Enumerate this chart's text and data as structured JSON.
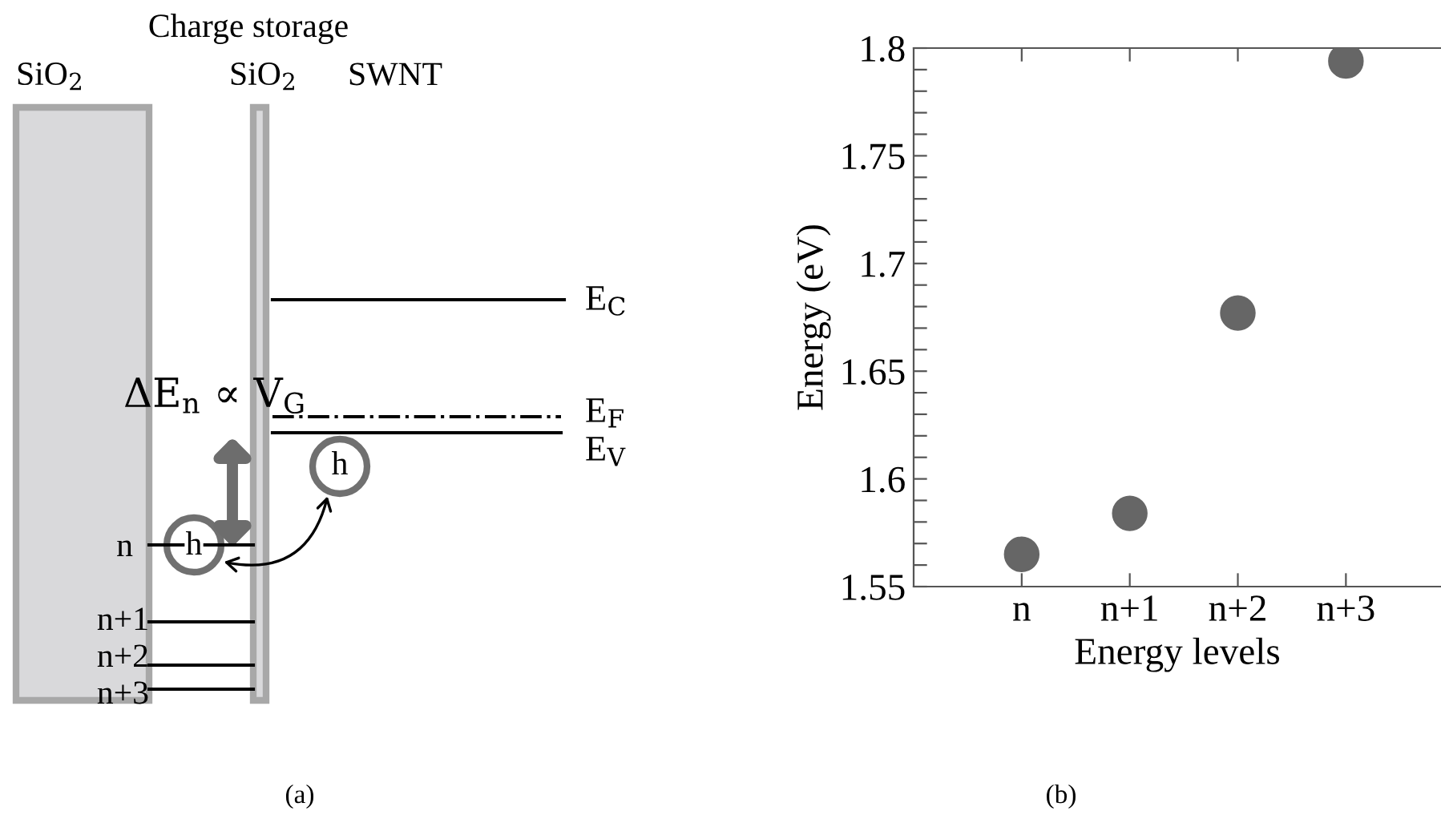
{
  "chart_data": [
    {
      "type": "other",
      "annotations": [
        "Charge storage",
        "SiO$_{2}$",
        "SiO$_{2}$",
        "SWNT",
        "E$_{C}$",
        "E$_{F}$",
        "E$_{V}$",
        "ΔE$_{n}$ ∝ V$_{G}$",
        "h",
        "h",
        "n",
        "n+1",
        "n+2",
        "n+3",
        "(a)"
      ]
    },
    {
      "type": "scatter",
      "categories": [
        "n",
        "n+1",
        "n+2",
        "n+3"
      ],
      "values": [
        1.565,
        1.584,
        1.677,
        1.794
      ],
      "color": "#666666",
      "marker": "circle",
      "xlabel": "Energy levels",
      "ylabel": "Energy (eV)",
      "ylim": [
        1.55,
        1.8
      ],
      "yticks": [
        1.55,
        {
          "value": 1.56,
          "label": null
        },
        {
          "value": 1.57,
          "label": null
        },
        {
          "value": 1.58,
          "label": null
        },
        {
          "value": 1.59,
          "label": null
        },
        1.6,
        {
          "value": 1.61,
          "label": null
        },
        {
          "value": 1.62,
          "label": null
        },
        {
          "value": 1.63,
          "label": null
        },
        {
          "value": 1.64,
          "label": null
        },
        1.65,
        {
          "value": 1.66,
          "label": null
        },
        {
          "value": 1.67,
          "label": null
        },
        {
          "value": 1.68,
          "label": null
        },
        {
          "value": 1.69,
          "label": null
        },
        1.7,
        {
          "value": 1.71,
          "label": null
        },
        {
          "value": 1.72,
          "label": null
        },
        {
          "value": 1.73,
          "label": null
        },
        {
          "value": 1.74,
          "label": null
        },
        1.75,
        {
          "value": 1.76,
          "label": null
        },
        {
          "value": 1.77,
          "label": null
        },
        {
          "value": 1.78,
          "label": null
        },
        {
          "value": 1.79,
          "label": null
        },
        1.8
      ],
      "grid": false,
      "legend": false,
      "annotations": [
        "(b)"
      ]
    }
  ]
}
